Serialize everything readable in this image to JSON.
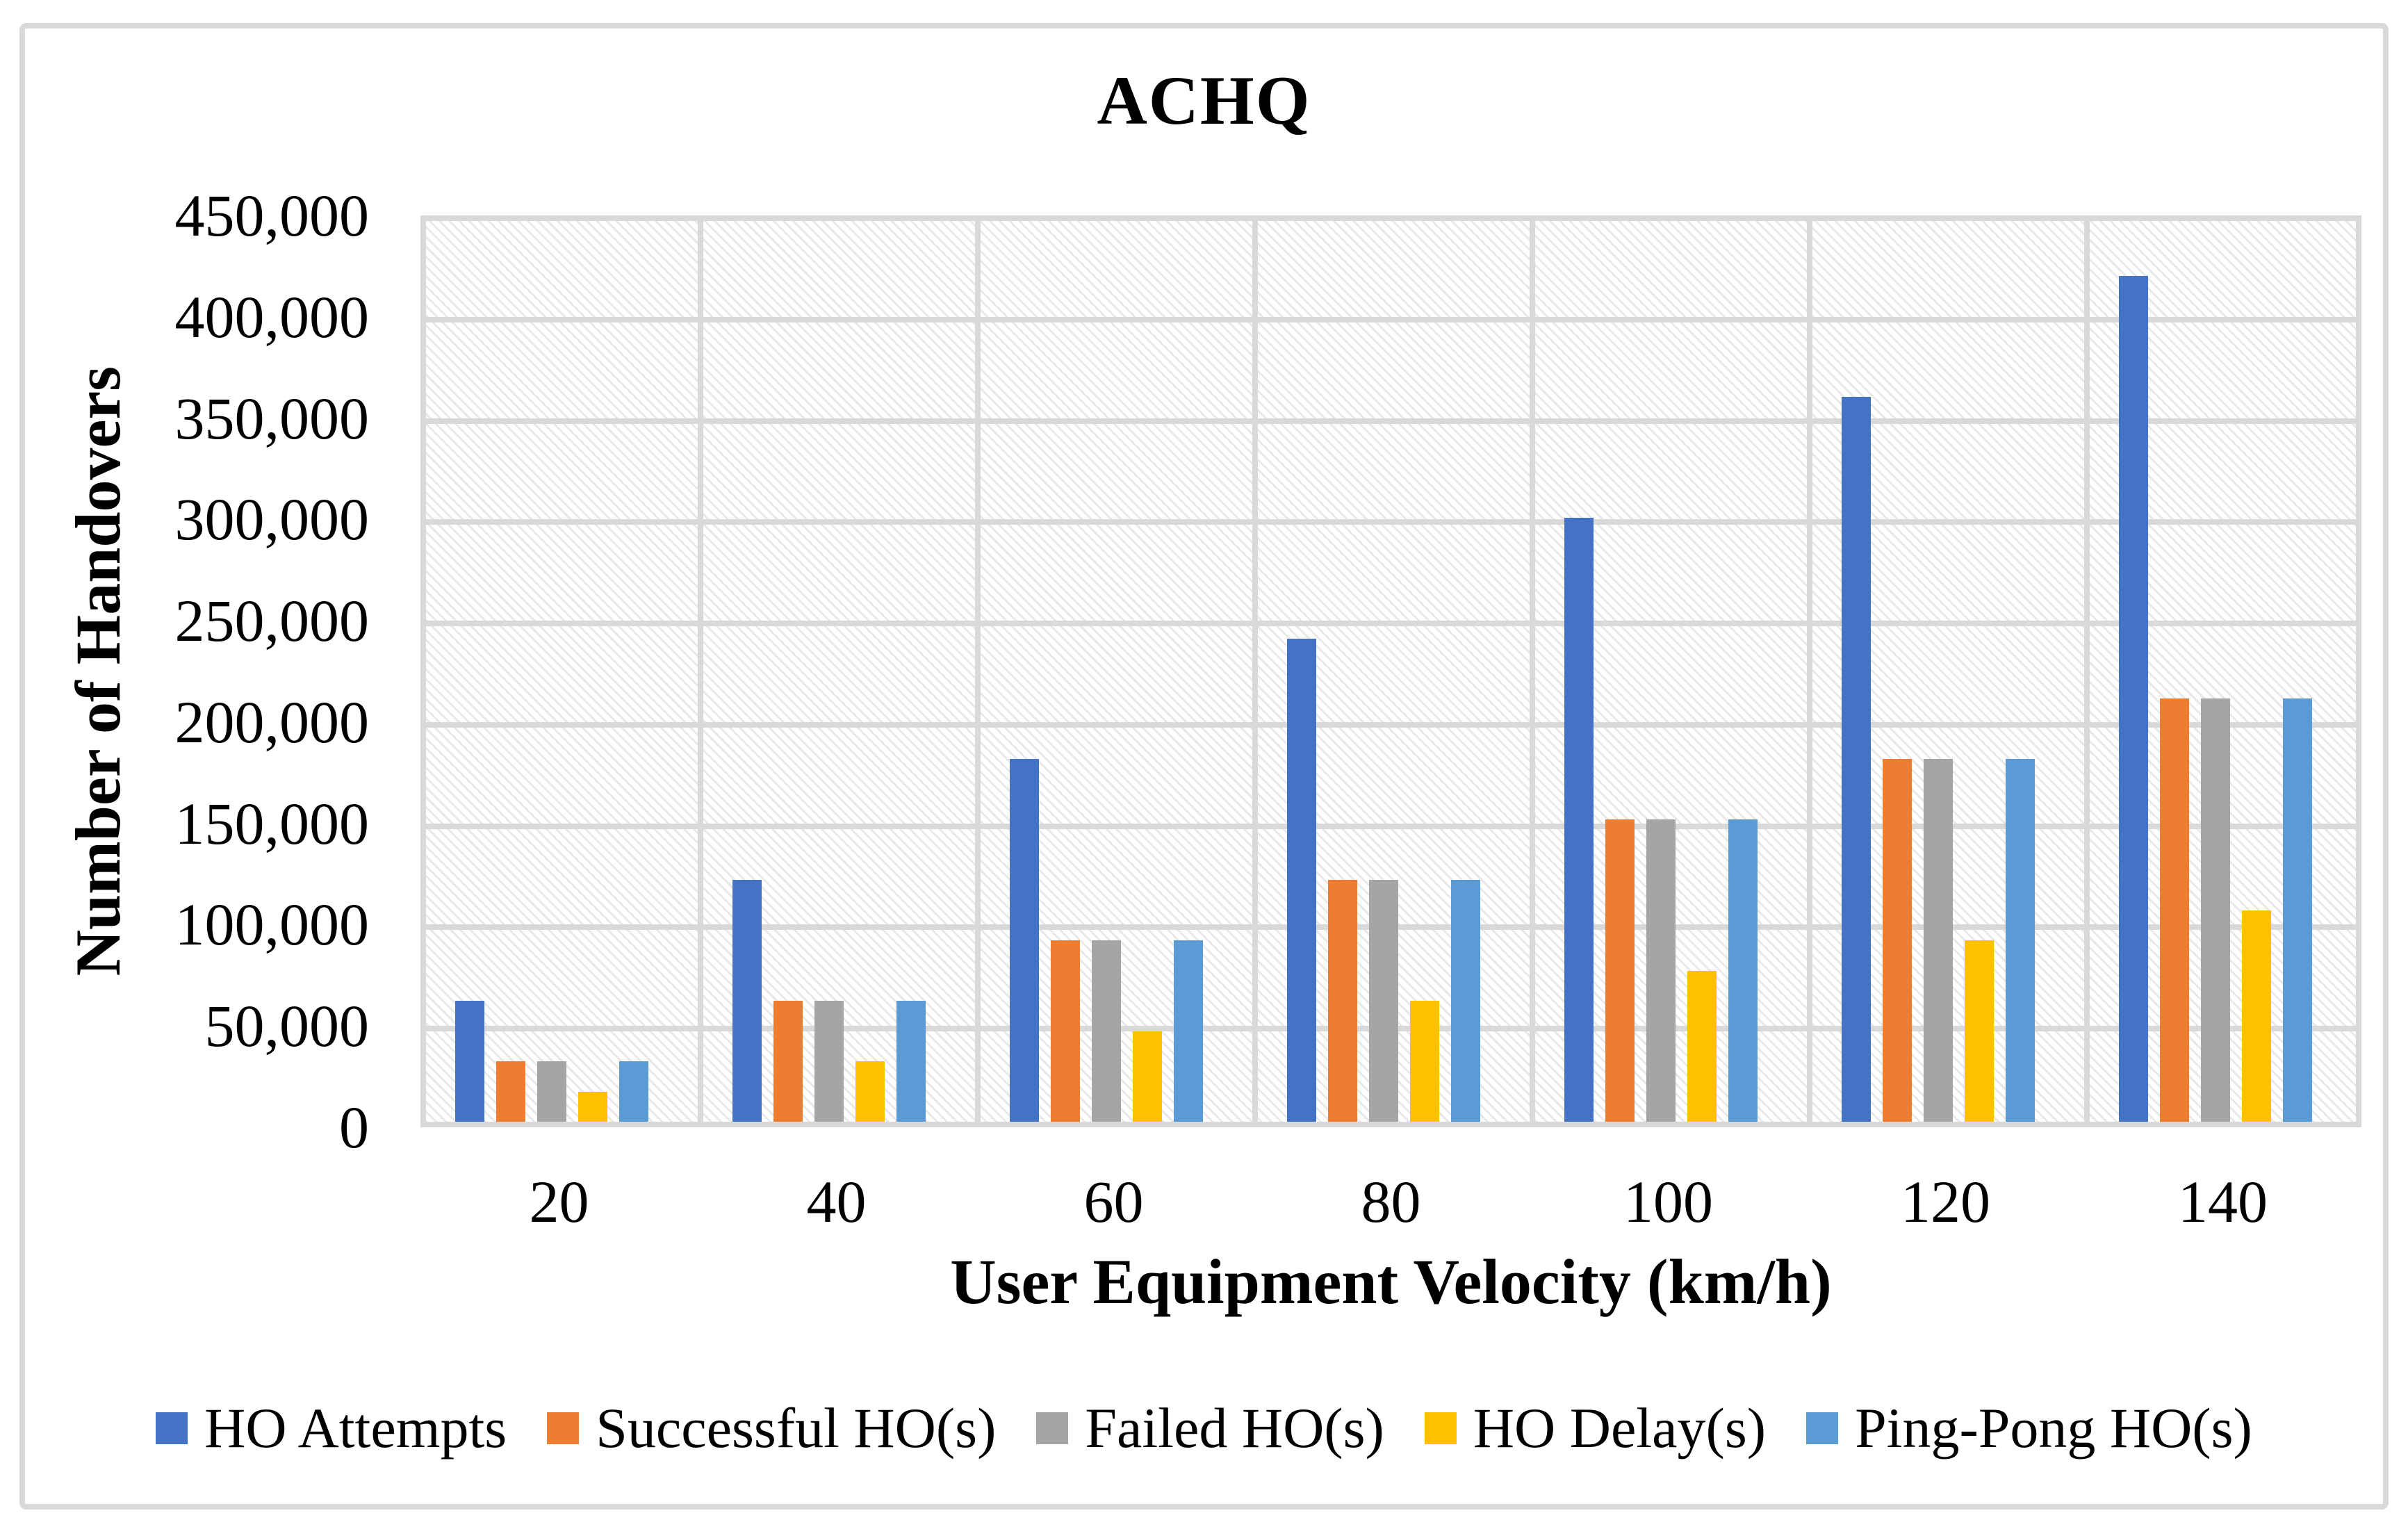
{
  "figure": {
    "border_color": "#D9D9D9",
    "background": "#FFFFFF"
  },
  "chart_data": {
    "type": "bar",
    "title": "ACHQ",
    "xlabel": "User Equipment Velocity (km/h)",
    "ylabel": "Number of Handovers",
    "categories": [
      "20",
      "40",
      "60",
      "80",
      "100",
      "120",
      "140"
    ],
    "series": [
      {
        "name": "HO Attempts",
        "color": "#4472C4",
        "values": [
          60000,
          120000,
          180000,
          240000,
          300000,
          360000,
          420000
        ]
      },
      {
        "name": "Successful HO(s)",
        "color": "#ED7D31",
        "values": [
          30000,
          60000,
          90000,
          120000,
          150000,
          180000,
          210000
        ]
      },
      {
        "name": "Failed HO(s)",
        "color": "#A5A5A5",
        "values": [
          30000,
          60000,
          90000,
          120000,
          150000,
          180000,
          210000
        ]
      },
      {
        "name": "HO Delay(s)",
        "color": "#FFC000",
        "values": [
          15000,
          30000,
          45000,
          60000,
          75000,
          90000,
          105000
        ]
      },
      {
        "name": "Ping-Pong HO(s)",
        "color": "#5B9BD5",
        "values": [
          30000,
          60000,
          90000,
          120000,
          150000,
          180000,
          210000
        ]
      }
    ],
    "ylim": [
      0,
      450000
    ],
    "ytick_step": 50000,
    "ytick_labels": [
      "450,000",
      "400,000",
      "350,000",
      "300,000",
      "250,000",
      "200,000",
      "150,000",
      "100,000",
      "50,000",
      "0"
    ],
    "grid": true,
    "gridline_color": "#D9D9D9",
    "plot_background": "diagonal-hatch",
    "legend_position": "bottom"
  }
}
